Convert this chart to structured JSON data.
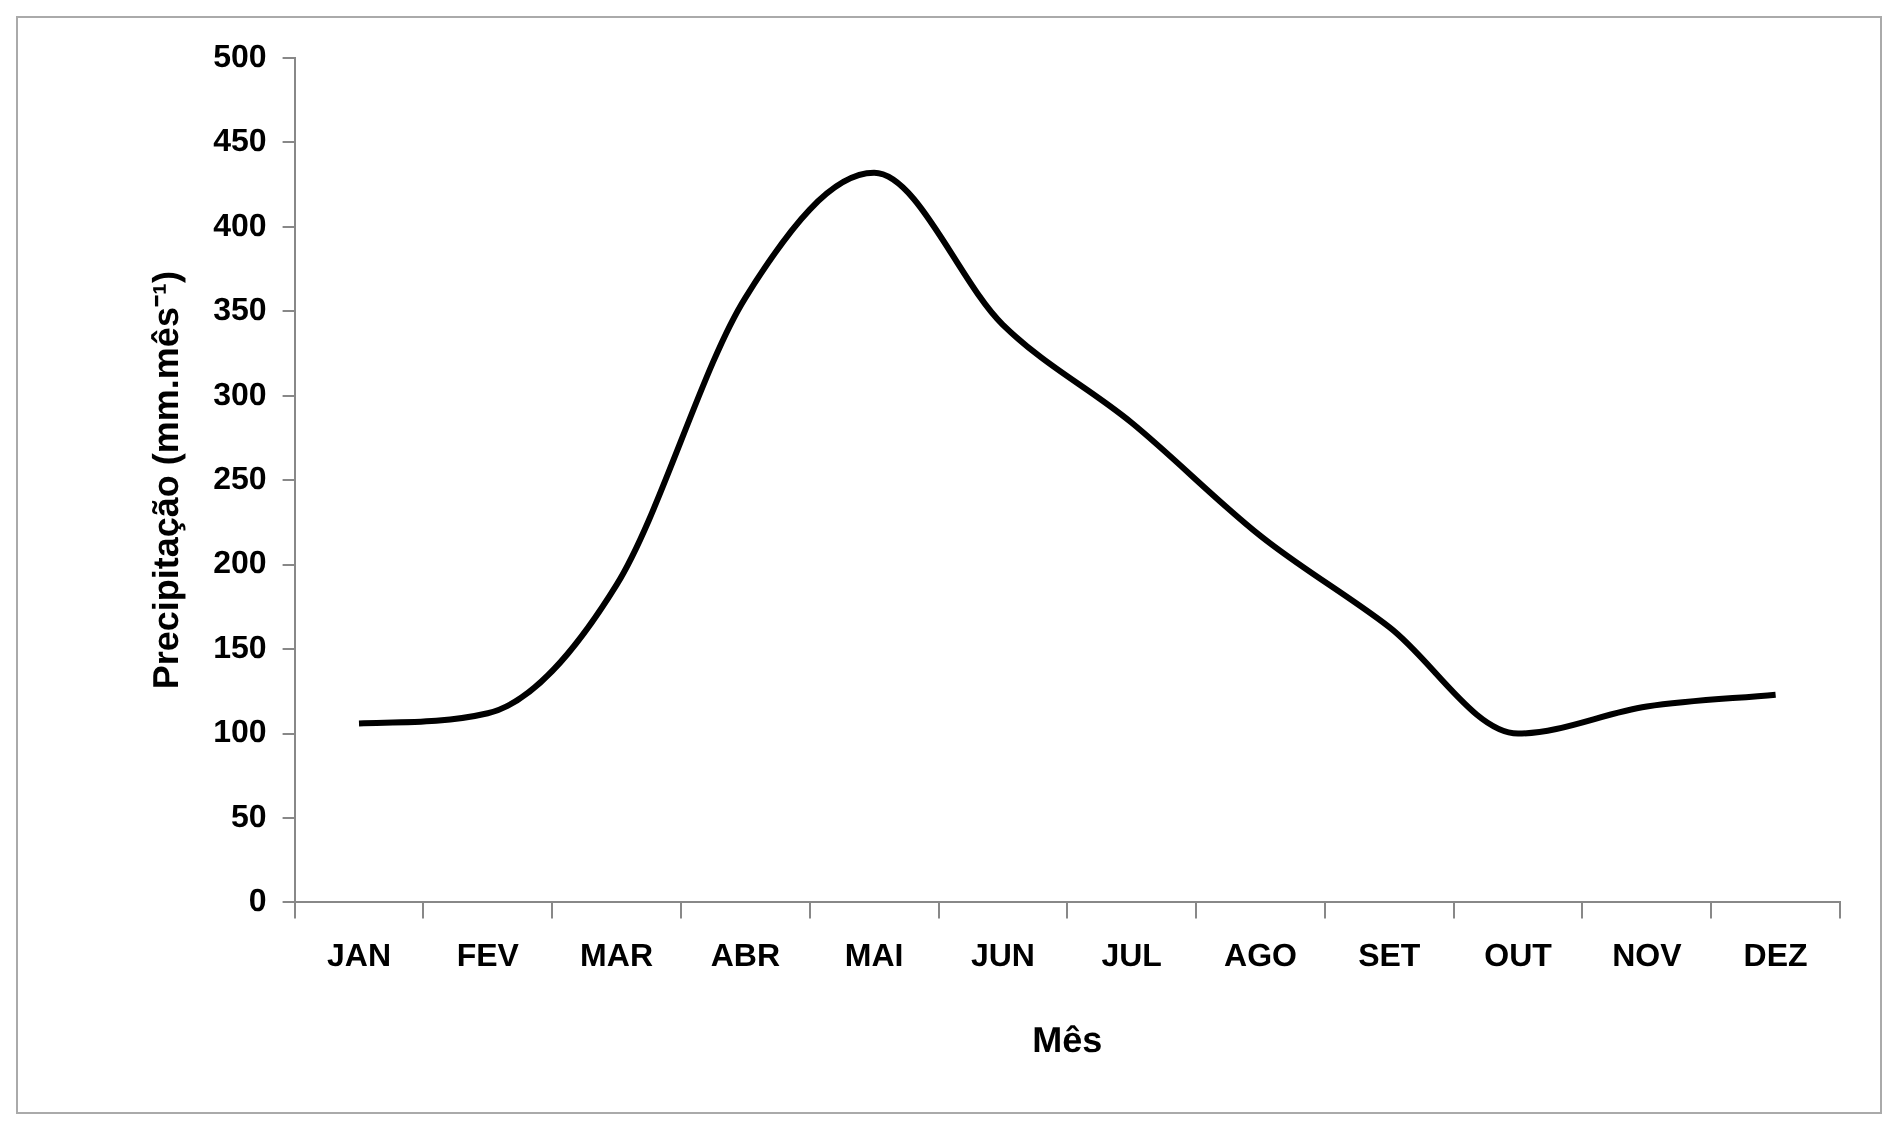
{
  "chart_data": {
    "type": "line",
    "xlabel": "Mês",
    "ylabel": "Precipitação (mm.mês⁻¹)",
    "categories": [
      "JAN",
      "FEV",
      "MAR",
      "ABR",
      "MAI",
      "JUN",
      "JUL",
      "AGO",
      "SET",
      "OUT",
      "NOV",
      "DEZ"
    ],
    "series": [
      {
        "color": "#000000",
        "values": [
          106,
          112,
          188,
          358,
          432,
          342,
          284,
          217,
          163,
          100,
          116,
          123
        ]
      }
    ],
    "ylim": [
      0,
      500
    ],
    "yticks": [
      0,
      50,
      100,
      150,
      200,
      250,
      300,
      350,
      400,
      450,
      500
    ],
    "grid": false,
    "legend": false,
    "marker": "none",
    "line_style": "solid"
  }
}
